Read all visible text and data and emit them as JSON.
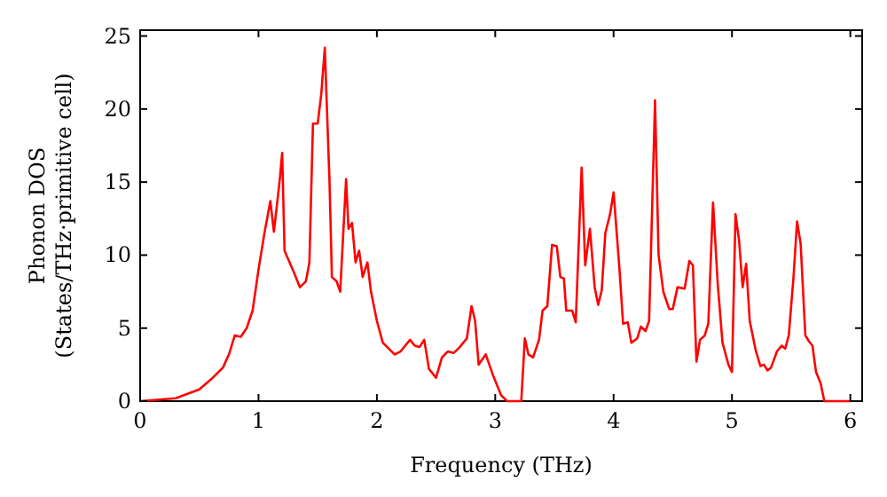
{
  "chart_data": {
    "type": "line",
    "xlabel": "Frequency (THz)",
    "ylabel": "Phonon DOS\n(States/THz·primitive cell)",
    "xlim": [
      0,
      6.1
    ],
    "ylim": [
      0,
      25.4
    ],
    "xticks": [
      0,
      1,
      2,
      3,
      4,
      5,
      6
    ],
    "yticks": [
      0,
      5,
      10,
      15,
      20,
      25
    ],
    "grid": false,
    "marker": "none",
    "line_style": "solid",
    "series": [
      {
        "color": "#ff0000",
        "x": [
          0,
          0.3,
          0.5,
          0.6,
          0.7,
          0.75,
          0.8,
          0.85,
          0.9,
          0.95,
          1.0,
          1.05,
          1.1,
          1.13,
          1.18,
          1.2,
          1.22,
          1.3,
          1.35,
          1.4,
          1.43,
          1.46,
          1.5,
          1.53,
          1.56,
          1.6,
          1.62,
          1.66,
          1.69,
          1.74,
          1.76,
          1.79,
          1.82,
          1.85,
          1.88,
          1.92,
          1.95,
          2.0,
          2.05,
          2.15,
          2.2,
          2.28,
          2.32,
          2.36,
          2.4,
          2.44,
          2.5,
          2.55,
          2.6,
          2.65,
          2.7,
          2.76,
          2.8,
          2.83,
          2.86,
          2.92,
          2.98,
          3.05,
          3.1,
          3.22,
          3.25,
          3.28,
          3.32,
          3.37,
          3.4,
          3.44,
          3.48,
          3.52,
          3.55,
          3.58,
          3.6,
          3.65,
          3.68,
          3.73,
          3.76,
          3.8,
          3.84,
          3.87,
          3.9,
          3.93,
          3.97,
          4.0,
          4.05,
          4.08,
          4.12,
          4.15,
          4.2,
          4.23,
          4.27,
          4.3,
          4.35,
          4.38,
          4.42,
          4.47,
          4.5,
          4.54,
          4.6,
          4.64,
          4.67,
          4.7,
          4.73,
          4.77,
          4.8,
          4.84,
          4.88,
          4.92,
          4.97,
          5.0,
          5.03,
          5.06,
          5.09,
          5.12,
          5.15,
          5.2,
          5.24,
          5.27,
          5.3,
          5.33,
          5.38,
          5.42,
          5.45,
          5.48,
          5.52,
          5.55,
          5.58,
          5.62,
          5.65,
          5.68,
          5.71,
          5.75,
          5.78,
          6.0
        ],
        "values": [
          0,
          0.2,
          0.8,
          1.5,
          2.3,
          3.2,
          4.5,
          4.4,
          5,
          6.2,
          9,
          11.5,
          13.7,
          11.6,
          15.2,
          17,
          10.3,
          8.8,
          7.8,
          8.2,
          9.5,
          19,
          19,
          21,
          24.2,
          15,
          8.5,
          8.2,
          7.5,
          15.2,
          11.8,
          12.2,
          9.5,
          10.3,
          8.5,
          9.5,
          7.5,
          5.5,
          4,
          3.2,
          3.4,
          4.2,
          3.8,
          3.7,
          4.2,
          2.2,
          1.6,
          3,
          3.4,
          3.3,
          3.7,
          4.3,
          6.5,
          5.5,
          2.5,
          3.2,
          1.8,
          0.4,
          0,
          0,
          4.3,
          3.2,
          3,
          4.2,
          6.2,
          6.5,
          10.7,
          10.6,
          8.5,
          8.4,
          6.2,
          6.2,
          5.4,
          16,
          9.3,
          11.8,
          7.8,
          6.6,
          7.6,
          11.5,
          12.8,
          14.3,
          9,
          5.3,
          5.4,
          4,
          4.3,
          5.1,
          4.8,
          5.5,
          20.6,
          10,
          7.5,
          6.3,
          6.3,
          7.8,
          7.7,
          9.6,
          9.3,
          2.7,
          4.2,
          4.5,
          5.3,
          13.6,
          8,
          4,
          2.5,
          2,
          12.8,
          11,
          7.8,
          9.4,
          5.5,
          3.5,
          2.4,
          2.5,
          2.1,
          2.3,
          3.4,
          3.8,
          3.6,
          4.5,
          8.5,
          12.3,
          10.8,
          4.5,
          4.1,
          3.8,
          2,
          1.2,
          0,
          0
        ]
      }
    ]
  }
}
